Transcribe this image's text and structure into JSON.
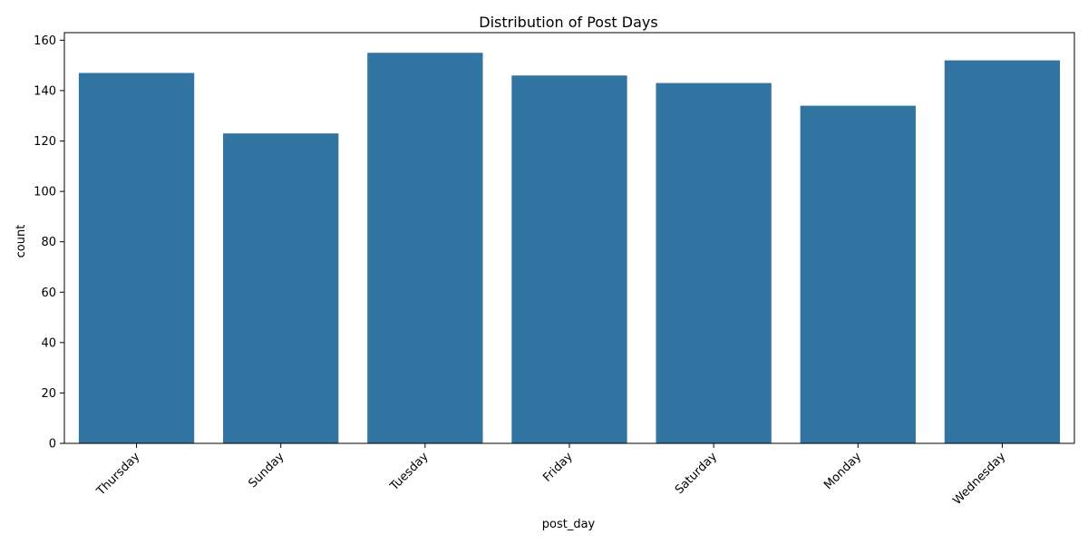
{
  "chart_data": {
    "type": "bar",
    "title": "Distribution of Post Days",
    "xlabel": "post_day",
    "ylabel": "count",
    "categories": [
      "Thursday",
      "Sunday",
      "Tuesday",
      "Friday",
      "Saturday",
      "Monday",
      "Wednesday"
    ],
    "values": [
      147,
      123,
      155,
      146,
      143,
      134,
      152
    ],
    "ylim": [
      0,
      163
    ],
    "yticks": [
      0,
      20,
      40,
      60,
      80,
      100,
      120,
      140,
      160
    ],
    "grid": false,
    "bar_color": "#3274a1"
  }
}
